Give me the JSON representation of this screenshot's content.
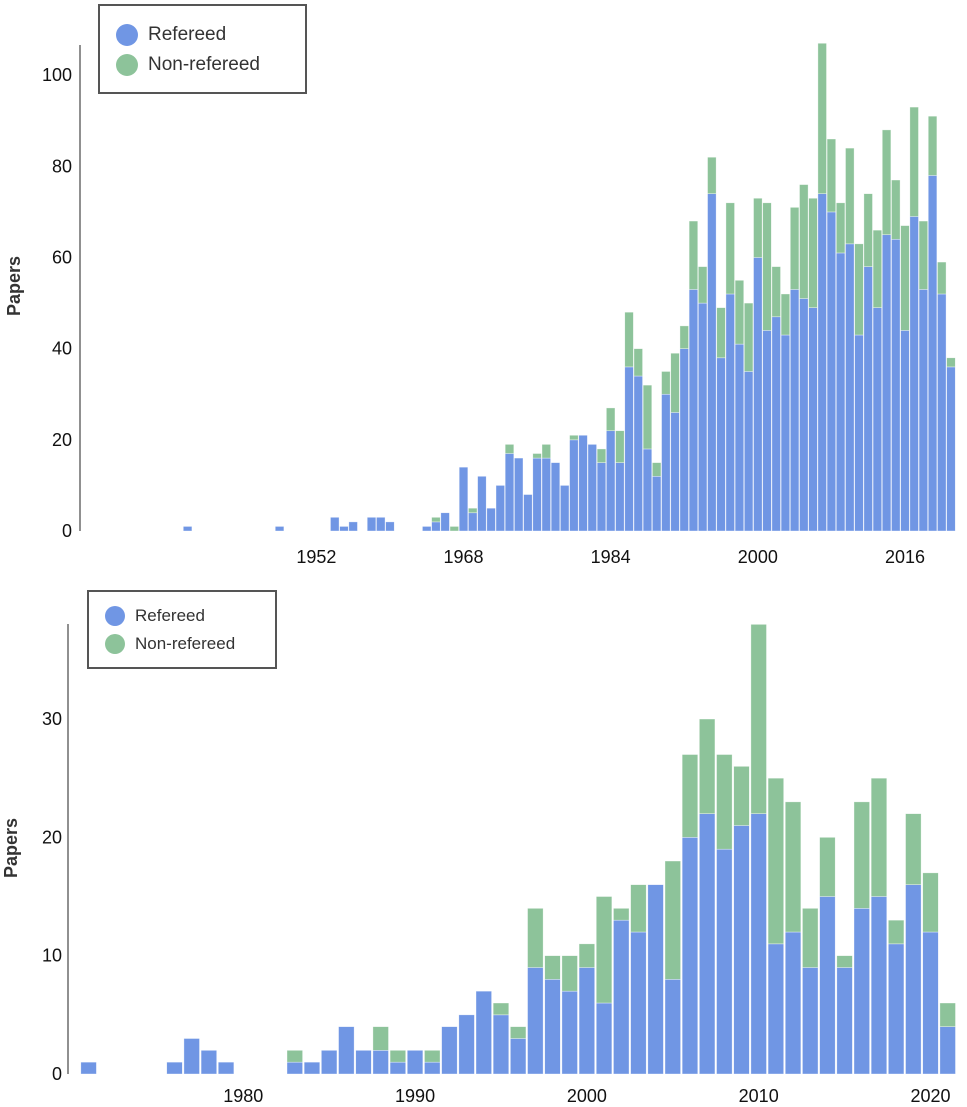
{
  "colors": {
    "refereed": "#7096e4",
    "nonrefereed": "#8dc39a"
  },
  "chart_data": [
    {
      "type": "bar",
      "stacked": true,
      "title": "",
      "xlabel": "",
      "ylabel": "Papers",
      "legend": {
        "position": "top-left",
        "entries": [
          "Refereed",
          "Non-refereed"
        ]
      },
      "x_ticks": [
        "1952",
        "1968",
        "1984",
        "2000",
        "2016"
      ],
      "y_ticks": [
        "0",
        "20",
        "40",
        "60",
        "80",
        "100"
      ],
      "xlim": [
        1926.3,
        2022.2
      ],
      "ylim": [
        0,
        107.5
      ],
      "x": [
        1938,
        1948,
        1954,
        1955,
        1956,
        1958,
        1959,
        1960,
        1964,
        1965,
        1966,
        1967,
        1968,
        1969,
        1970,
        1971,
        1972,
        1973,
        1974,
        1975,
        1976,
        1977,
        1978,
        1979,
        1980,
        1981,
        1982,
        1983,
        1984,
        1985,
        1986,
        1987,
        1988,
        1989,
        1990,
        1991,
        1992,
        1993,
        1994,
        1995,
        1996,
        1997,
        1998,
        1999,
        2000,
        2001,
        2002,
        2003,
        2004,
        2005,
        2006,
        2007,
        2008,
        2009,
        2010,
        2011,
        2012,
        2013,
        2014,
        2015,
        2016,
        2017,
        2018,
        2019,
        2020,
        2021
      ],
      "series": [
        {
          "name": "Refereed",
          "values": [
            1,
            1,
            3,
            1,
            2,
            3,
            3,
            2,
            1,
            2,
            4,
            0,
            14,
            4,
            12,
            5,
            10,
            17,
            16,
            8,
            16,
            16,
            15,
            10,
            20,
            21,
            19,
            15,
            22,
            15,
            36,
            34,
            18,
            12,
            30,
            26,
            40,
            53,
            50,
            74,
            38,
            52,
            41,
            35,
            60,
            44,
            47,
            43,
            53,
            51,
            49,
            74,
            70,
            61,
            63,
            43,
            58,
            49,
            65,
            64,
            44,
            69,
            53,
            78,
            52,
            36
          ]
        },
        {
          "name": "Non-refereed",
          "values": [
            0,
            0,
            0,
            0,
            0,
            0,
            0,
            0,
            0,
            1,
            0,
            1,
            0,
            1,
            0,
            0,
            0,
            2,
            0,
            0,
            1,
            3,
            0,
            0,
            1,
            0,
            0,
            3,
            5,
            7,
            12,
            6,
            14,
            3,
            5,
            13,
            5,
            15,
            8,
            8,
            11,
            20,
            14,
            15,
            13,
            28,
            11,
            9,
            18,
            25,
            24,
            33,
            16,
            11,
            21,
            20,
            16,
            17,
            23,
            13,
            23,
            24,
            15,
            13,
            7,
            2
          ]
        }
      ]
    },
    {
      "type": "bar",
      "stacked": true,
      "title": "",
      "xlabel": "",
      "ylabel": "Papers",
      "legend": {
        "position": "top-left",
        "entries": [
          "Refereed",
          "Non-refereed"
        ]
      },
      "x_ticks": [
        "1980",
        "1990",
        "2000",
        "2010",
        "2020"
      ],
      "y_ticks": [
        "0",
        "10",
        "20",
        "30"
      ],
      "xlim": [
        1969.8,
        2021.6
      ],
      "ylim": [
        0,
        38.2
      ],
      "x": [
        1971,
        1976,
        1977,
        1978,
        1979,
        1983,
        1984,
        1985,
        1986,
        1987,
        1988,
        1989,
        1990,
        1991,
        1992,
        1993,
        1994,
        1995,
        1996,
        1997,
        1998,
        1999,
        2000,
        2001,
        2002,
        2003,
        2004,
        2005,
        2006,
        2007,
        2008,
        2009,
        2010,
        2011,
        2012,
        2013,
        2014,
        2015,
        2016,
        2017,
        2018,
        2019,
        2020,
        2021
      ],
      "series": [
        {
          "name": "Refereed",
          "values": [
            1,
            1,
            3,
            2,
            1,
            1,
            1,
            2,
            4,
            2,
            2,
            1,
            2,
            1,
            4,
            5,
            7,
            5,
            3,
            9,
            8,
            7,
            9,
            6,
            13,
            12,
            16,
            8,
            20,
            22,
            19,
            21,
            22,
            11,
            12,
            9,
            15,
            9,
            14,
            15,
            11,
            16,
            12,
            4
          ]
        },
        {
          "name": "Non-refereed",
          "values": [
            0,
            0,
            0,
            0,
            0,
            1,
            0,
            0,
            0,
            0,
            2,
            1,
            0,
            1,
            0,
            0,
            0,
            1,
            1,
            5,
            2,
            3,
            2,
            9,
            1,
            4,
            0,
            10,
            7,
            8,
            8,
            5,
            16,
            14,
            11,
            5,
            5,
            1,
            9,
            10,
            2,
            6,
            5,
            2
          ]
        }
      ]
    }
  ]
}
